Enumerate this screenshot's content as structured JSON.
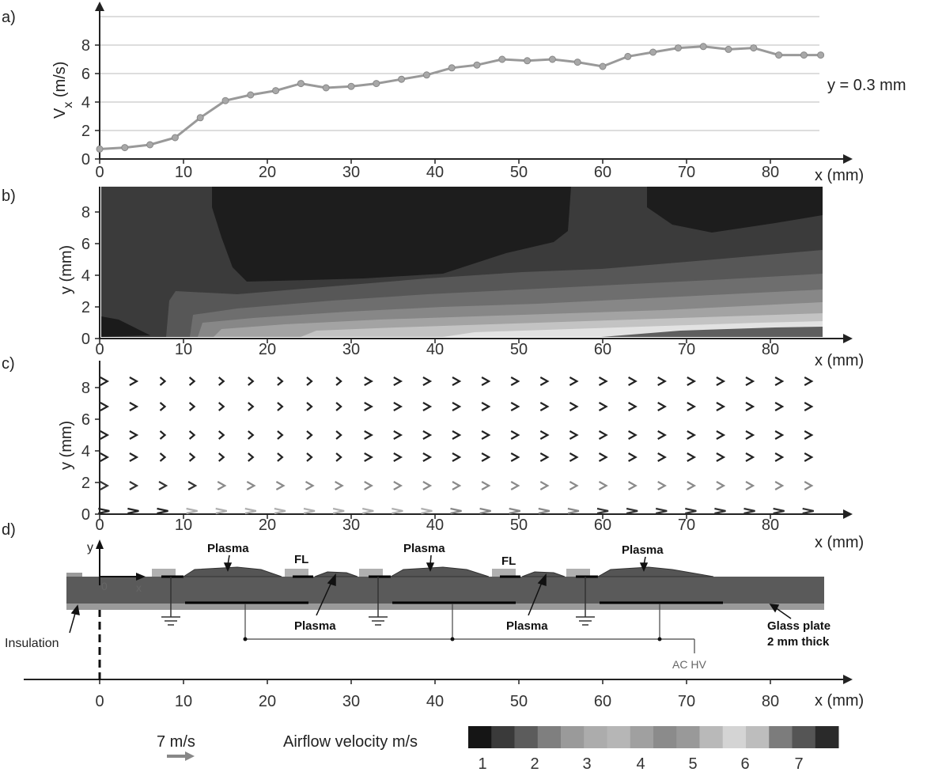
{
  "chart_data": [
    {
      "panel": "a)",
      "type": "line",
      "ylabel": "V",
      "ylabel_sub": "x",
      "ylabel_unit": " (m/s)",
      "xlabel": "x (mm)",
      "annotation": "y = 0.3 mm",
      "xlim": [
        0,
        86
      ],
      "ylim": [
        0,
        10
      ],
      "xticks": [
        0,
        10,
        20,
        30,
        40,
        50,
        60,
        70,
        80
      ],
      "yticks": [
        0,
        2,
        4,
        6,
        8
      ],
      "grid": "horizontal",
      "x": [
        0,
        3,
        6,
        9,
        12,
        15,
        18,
        21,
        24,
        27,
        30,
        33,
        36,
        39,
        42,
        45,
        48,
        51,
        54,
        57,
        60,
        63,
        66,
        69,
        72,
        75,
        78,
        81,
        84,
        86
      ],
      "y": [
        0.7,
        0.8,
        1.0,
        1.5,
        2.9,
        4.1,
        4.5,
        4.8,
        5.3,
        5.0,
        5.1,
        5.3,
        5.6,
        5.9,
        6.4,
        6.6,
        7.0,
        6.9,
        7.0,
        6.8,
        6.5,
        7.2,
        7.5,
        7.8,
        7.9,
        7.7,
        7.8,
        7.3,
        7.3,
        7.3
      ]
    },
    {
      "panel": "b)",
      "type": "heatmap",
      "ylabel": "y (mm)",
      "xlabel": "x (mm)",
      "xlim": [
        0,
        86
      ],
      "ylim": [
        0,
        9.5
      ],
      "xticks": [
        0,
        10,
        20,
        30,
        40,
        50,
        60,
        70,
        80
      ],
      "yticks": [
        0,
        2,
        4,
        6,
        8
      ]
    },
    {
      "panel": "c)",
      "type": "scatter",
      "ylabel": "y (mm)",
      "xlabel": "x (mm)",
      "xlim": [
        0,
        86
      ],
      "ylim": [
        0,
        9.5
      ],
      "xticks": [
        0,
        10,
        20,
        30,
        40,
        50,
        60,
        70,
        80
      ],
      "yticks": [
        0,
        2,
        4,
        6,
        8
      ],
      "vector_rows_y": [
        8.4,
        6.8,
        5.0,
        3.6,
        1.8,
        0.2
      ],
      "vector_cols_x": [
        0.5,
        4,
        7.5,
        11,
        14.5,
        18,
        21.5,
        25,
        28.5,
        32,
        35.5,
        39,
        42.5,
        46,
        49.5,
        53,
        56.5,
        60,
        63.5,
        67,
        70.5,
        74,
        77.5,
        81,
        84.5
      ]
    },
    {
      "panel": "d)",
      "type": "table",
      "xlabel": "x (mm)",
      "xticks": [
        0,
        10,
        20,
        30,
        40,
        50,
        60,
        70,
        80
      ]
    }
  ],
  "labels": {
    "a": "a)",
    "b": "b)",
    "c": "c)",
    "d": "d)"
  },
  "diagram": {
    "y_axis": "y",
    "origin": "0",
    "x_axis": "x",
    "plasma_top": [
      "Plasma",
      "Plasma",
      "Plasma"
    ],
    "fl": [
      "FL",
      "FL"
    ],
    "plasma_bottom": [
      "Plasma",
      "Plasma"
    ],
    "insulation": "Insulation",
    "glass_line1": "Glass plate",
    "glass_line2": "2 mm thick",
    "achv": "AC HV"
  },
  "legend": {
    "arrow_scale": "7 m/s",
    "colorbar_title": "Airflow velocity m/s",
    "colorbar_ticks": [
      "1",
      "2",
      "3",
      "4",
      "5",
      "6",
      "7"
    ],
    "colorbar_colors": [
      "#151515",
      "#3a3a3a",
      "#5c5c5c",
      "#7f7f7f",
      "#9a9a9a",
      "#acacac",
      "#b6b6b6",
      "#a0a0a0",
      "#8b8b8b",
      "#999",
      "#b9b9b9",
      "#d4d4d4",
      "#bdbdbd",
      "#7c7c7c",
      "#555",
      "#2a2a2a"
    ]
  }
}
